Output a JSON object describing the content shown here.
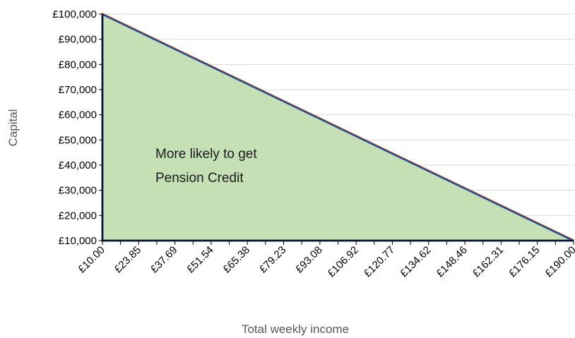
{
  "chart_data": {
    "type": "area",
    "title": "",
    "xlabel": "Total weekly income",
    "ylabel": "Capital",
    "x_tick_labels": [
      "£10.00",
      "£23.85",
      "£37.69",
      "£51.54",
      "£65.38",
      "£79.23",
      "£93.08",
      "£106.92",
      "£120.77",
      "£134.62",
      "£148.46",
      "£162.31",
      "£176.15",
      "£190.00"
    ],
    "y_tick_labels": [
      "£10,000",
      "£20,000",
      "£30,000",
      "£40,000",
      "£50,000",
      "£60,000",
      "£70,000",
      "£80,000",
      "£90,000",
      "£100,000"
    ],
    "y_ticks": [
      10000,
      20000,
      30000,
      40000,
      50000,
      60000,
      70000,
      80000,
      90000,
      100000
    ],
    "xlim": [
      10,
      190
    ],
    "ylim": [
      10000,
      100000
    ],
    "series": [
      {
        "x": [
          10,
          190
        ],
        "y": [
          100000,
          10000
        ],
        "color": "#2f4a8a"
      },
      {
        "x": [
          10,
          190
        ],
        "y": [
          100000,
          10000
        ],
        "color": "#ed7d31"
      }
    ],
    "area": {
      "x": [
        10,
        10,
        190
      ],
      "y": [
        10000,
        100000,
        10000
      ],
      "fill": "#c5e0b4",
      "border": "#2f4a8a"
    },
    "annotation": {
      "lines": [
        "More likely to get",
        "Pension Credit"
      ]
    },
    "grid": true,
    "legend": "none"
  }
}
